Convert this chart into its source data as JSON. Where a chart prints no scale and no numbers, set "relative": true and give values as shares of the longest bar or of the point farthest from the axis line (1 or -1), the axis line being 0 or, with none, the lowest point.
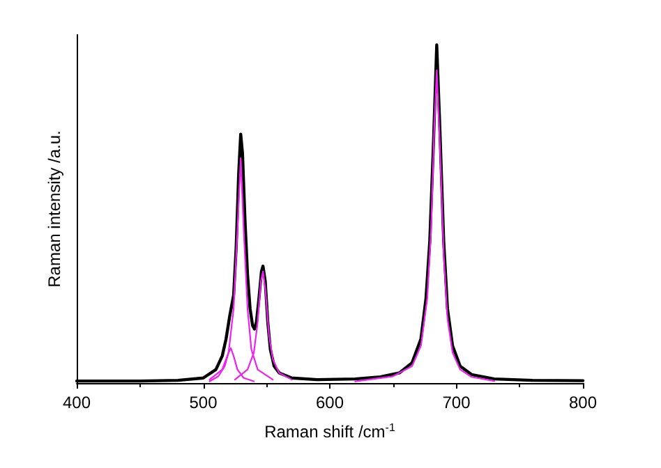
{
  "chart_data": {
    "type": "line",
    "relative": true,
    "xlabel": "Raman shift /cm$^{-1}$",
    "ylabel": "Raman intensity /a.u.",
    "xlim": [
      400,
      800
    ],
    "xticks": [
      400,
      500,
      600,
      700,
      800
    ],
    "marker": "none",
    "line_style": "solid",
    "series": [
      {
        "color": "#000000",
        "x": [
          400,
          450,
          480,
          500,
          510,
          515,
          518,
          521,
          524,
          526,
          528,
          529.6,
          531,
          533,
          535,
          537,
          539,
          540.5,
          542,
          544,
          546,
          547.2,
          549,
          551,
          553,
          556,
          560,
          570,
          590,
          620,
          640,
          655,
          665,
          672,
          676,
          679,
          682,
          684.5,
          687,
          690,
          693,
          697,
          703,
          712,
          730,
          760,
          800
        ],
        "values": [
          0.006,
          0.006,
          0.008,
          0.015,
          0.04,
          0.08,
          0.13,
          0.2,
          0.26,
          0.4,
          0.62,
          0.736,
          0.68,
          0.48,
          0.32,
          0.22,
          0.17,
          0.16,
          0.18,
          0.25,
          0.33,
          0.346,
          0.3,
          0.18,
          0.1,
          0.05,
          0.03,
          0.015,
          0.01,
          0.012,
          0.018,
          0.03,
          0.06,
          0.13,
          0.25,
          0.42,
          0.72,
          1.0,
          0.75,
          0.42,
          0.22,
          0.11,
          0.05,
          0.025,
          0.012,
          0.008,
          0.007
        ]
      },
      {
        "color": "#ee22ee",
        "x": [
          505,
          512,
          517,
          520,
          521.8,
          524,
          527,
          532,
          540
        ],
        "values": [
          0.005,
          0.02,
          0.05,
          0.09,
          0.103,
          0.08,
          0.04,
          0.015,
          0.005
        ]
      },
      {
        "color": "#ee22ee",
        "x": [
          505,
          515,
          520,
          524,
          527,
          529.6,
          532,
          535,
          538,
          543,
          555
        ],
        "values": [
          0.01,
          0.04,
          0.09,
          0.22,
          0.45,
          0.665,
          0.45,
          0.22,
          0.1,
          0.04,
          0.01
        ]
      },
      {
        "color": "#ee22ee",
        "x": [
          525,
          535,
          540,
          543,
          545.5,
          547.2,
          549,
          552,
          555,
          560,
          570
        ],
        "values": [
          0.01,
          0.04,
          0.09,
          0.18,
          0.3,
          0.33,
          0.28,
          0.14,
          0.07,
          0.03,
          0.01
        ]
      },
      {
        "color": "#ee22ee",
        "x": [
          620,
          650,
          665,
          672,
          677,
          680,
          682.5,
          684.5,
          687,
          690,
          693,
          697,
          703,
          712,
          730
        ],
        "values": [
          0.005,
          0.02,
          0.05,
          0.11,
          0.25,
          0.45,
          0.75,
          0.925,
          0.7,
          0.38,
          0.19,
          0.09,
          0.04,
          0.018,
          0.006
        ]
      }
    ]
  }
}
